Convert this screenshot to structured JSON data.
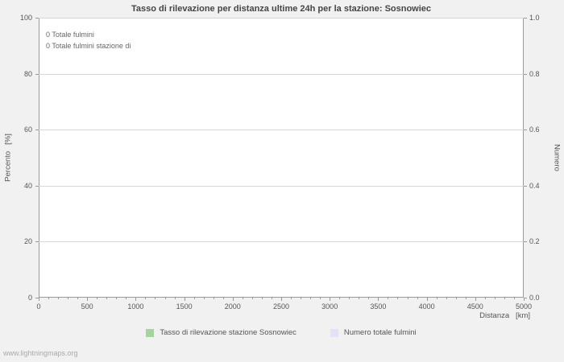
{
  "page": {
    "watermark": "www.lightningmaps.org"
  },
  "chart_data": {
    "type": "line",
    "title": "Tasso di rilevazione per distanza ultime 24h per la stazione: Sosnowiec",
    "xlabel": "Distanza   [km]",
    "ylabel_left": "Percento   [%]",
    "ylabel_right": "Numero",
    "xlim": [
      0,
      5000
    ],
    "ylim_left": [
      0,
      100
    ],
    "ylim_right": [
      0.0,
      1.0
    ],
    "x_ticks": [
      0,
      500,
      1000,
      1500,
      2000,
      2500,
      3000,
      3500,
      4000,
      4500,
      5000
    ],
    "x_minor_tick_step": 100,
    "y_left_ticks": [
      0,
      20,
      40,
      60,
      80,
      100
    ],
    "y_right_ticks": [
      "0.0",
      "0.2",
      "0.4",
      "0.6",
      "0.8",
      "1.0"
    ],
    "grid": true,
    "legend_position": "bottom",
    "annotations": [
      "0 Totale fulmini",
      "0 Totale fulmini stazione di"
    ],
    "series": [
      {
        "name": "Tasso di rilevazione stazione Sosnowiec",
        "color": "#a6d3a0",
        "axis": "left",
        "values": []
      },
      {
        "name": "Numero totale fulmini",
        "color": "#e2e2f6",
        "axis": "right",
        "values": []
      }
    ]
  }
}
